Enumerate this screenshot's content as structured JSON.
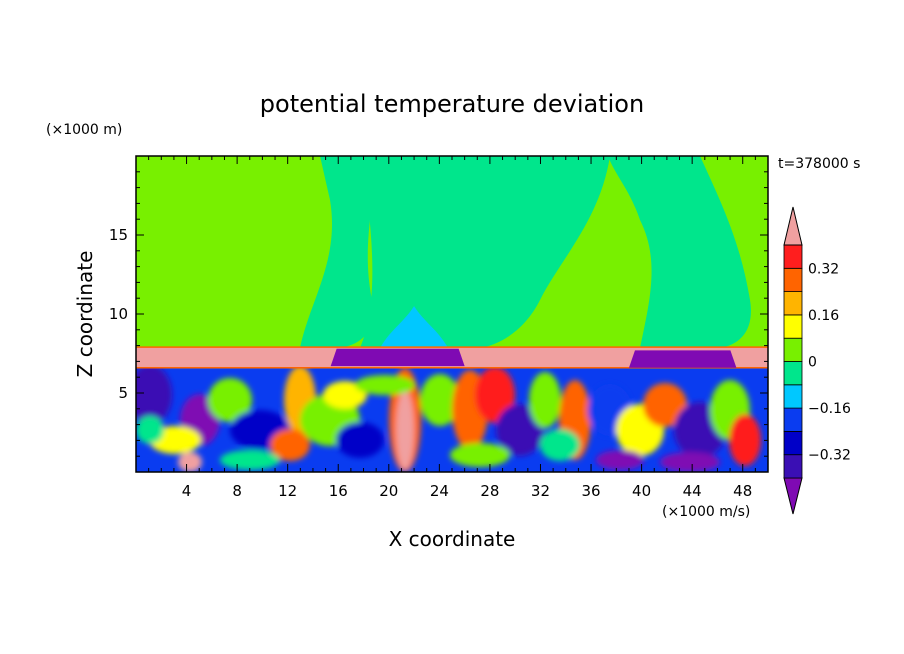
{
  "chart_data": {
    "type": "heatmap",
    "title": "potential temperature deviation",
    "xlabel": "X coordinate",
    "ylabel": "Z coordinate",
    "x_unit": "(×1000 m/s)",
    "y_unit": "(×1000 m)",
    "time_label": "t=378000 s",
    "x_range": [
      0,
      50
    ],
    "y_range": [
      0,
      20
    ],
    "x_ticks": [
      4,
      8,
      12,
      16,
      20,
      24,
      28,
      32,
      36,
      40,
      44,
      48
    ],
    "y_ticks": [
      5,
      10,
      15
    ],
    "colorbar": {
      "levels": [
        -0.48,
        -0.4,
        -0.32,
        -0.24,
        -0.16,
        -0.08,
        0,
        0.08,
        0.16,
        0.24,
        0.32,
        0.4
      ],
      "labels": [
        "0.32",
        "0.16",
        "0",
        "−0.16",
        "−0.32"
      ],
      "label_values": [
        0.32,
        0.16,
        0,
        -0.16,
        -0.32
      ],
      "colors": [
        "#7f0ab3",
        "#3a0fb4",
        "#0000c8",
        "#0a3cf0",
        "#00c8ff",
        "#00e68c",
        "#78f000",
        "#ffff00",
        "#ffb400",
        "#ff6400",
        "#ff1e1e",
        "#f0a0a0"
      ],
      "extend": "both"
    },
    "regions": {
      "upper_layer_value": 0.04,
      "upper_layer_top": 20,
      "upper_layer_bottom": 7.9,
      "inversion_band": {
        "value": 0.45,
        "z_min": 6.6,
        "z_max": 7.9
      },
      "cold_pools": [
        {
          "x_min": 15.4,
          "x_max": 26,
          "z_min": 6.7,
          "z_max": 7.8,
          "value": -0.5
        },
        {
          "x_min": 39,
          "x_max": 47.5,
          "z_min": 6.6,
          "z_max": 7.7,
          "value": -0.5
        }
      ],
      "cool_plume": {
        "x_center": 22,
        "z_max": 10.5,
        "value": -0.1
      },
      "convective_layer": {
        "z_min": 0,
        "z_max": 6.6
      }
    }
  }
}
